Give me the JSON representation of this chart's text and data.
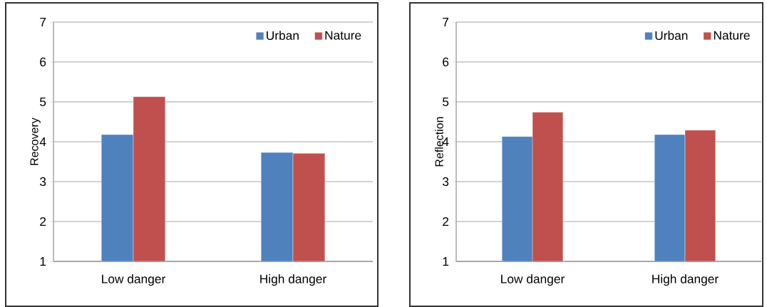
{
  "chart_data": [
    {
      "type": "bar",
      "ylabel": "Recovery",
      "categories": [
        "Low danger",
        "High danger"
      ],
      "series": [
        {
          "name": "Urban",
          "color": "#4f81bd",
          "values": [
            4.18,
            3.73
          ]
        },
        {
          "name": "Nature",
          "color": "#c0504d",
          "values": [
            5.13,
            3.71
          ]
        }
      ],
      "ylim": [
        1,
        7
      ],
      "yticks": [
        1,
        2,
        3,
        4,
        5,
        6,
        7
      ],
      "grid": "y",
      "legend": "top right"
    },
    {
      "type": "bar",
      "ylabel": "Reflection",
      "categories": [
        "Low danger",
        "High danger"
      ],
      "series": [
        {
          "name": "Urban",
          "color": "#4f81bd",
          "values": [
            4.13,
            4.18
          ]
        },
        {
          "name": "Nature",
          "color": "#c0504d",
          "values": [
            4.74,
            4.29
          ]
        }
      ],
      "ylim": [
        1,
        7
      ],
      "yticks": [
        1,
        2,
        3,
        4,
        5,
        6,
        7
      ],
      "grid": "y",
      "legend": "top right"
    }
  ]
}
